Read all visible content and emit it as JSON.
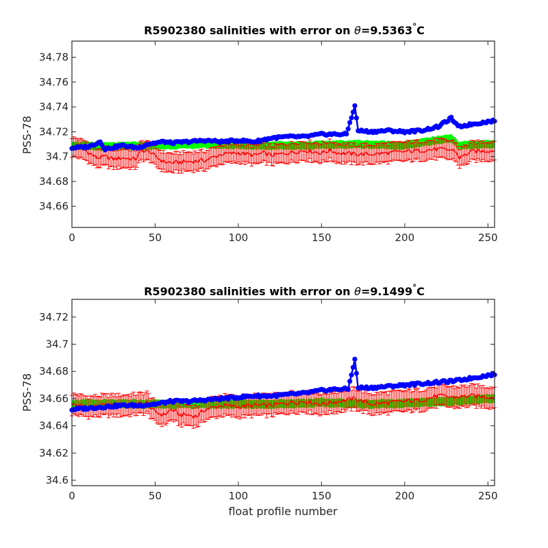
{
  "figure": {
    "xlabel": "float profile number"
  },
  "chart_data": [
    {
      "type": "line",
      "title_prefix": "R5902380 salinities with error on ",
      "theta_symbol": "θ",
      "theta_value": "=9.5363",
      "title_suffix": "C",
      "degree_mark": "°",
      "xlabel": "",
      "ylabel": "PSS-78",
      "xlim": [
        0,
        254
      ],
      "ylim": [
        34.643,
        34.793
      ],
      "x_ticks": [
        0,
        50,
        100,
        150,
        200,
        250
      ],
      "x_tick_labels": [
        "0",
        "50",
        "100",
        "150",
        "200",
        "250"
      ],
      "y_ticks": [
        34.66,
        34.68,
        34.7,
        34.72,
        34.74,
        34.76,
        34.78
      ],
      "y_tick_labels": [
        "34.66",
        "34.68",
        "34.7",
        "34.72",
        "34.74",
        "34.76",
        "34.78"
      ],
      "colors": {
        "float": "#0000ff",
        "mapped": "#ff0000",
        "band": "#00ff00",
        "axis": "#262626"
      },
      "series": [
        {
          "kind": "float-salinity",
          "points": [
            [
              0,
              34.707
            ],
            [
              10,
              34.708
            ],
            [
              17,
              34.712
            ],
            [
              20,
              34.706
            ],
            [
              30,
              34.709
            ],
            [
              40,
              34.707
            ],
            [
              45,
              34.71
            ],
            [
              55,
              34.712
            ],
            [
              60,
              34.711
            ],
            [
              70,
              34.712
            ],
            [
              80,
              34.713
            ],
            [
              90,
              34.712
            ],
            [
              100,
              34.713
            ],
            [
              110,
              34.712
            ],
            [
              120,
              34.715
            ],
            [
              130,
              34.716
            ],
            [
              140,
              34.716
            ],
            [
              150,
              34.718
            ],
            [
              160,
              34.718
            ],
            [
              165,
              34.718
            ],
            [
              170,
              34.741
            ],
            [
              172,
              34.721
            ],
            [
              180,
              34.72
            ],
            [
              190,
              34.721
            ],
            [
              200,
              34.72
            ],
            [
              210,
              34.721
            ],
            [
              220,
              34.724
            ],
            [
              228,
              34.731
            ],
            [
              232,
              34.724
            ],
            [
              240,
              34.726
            ],
            [
              254,
              34.729
            ]
          ]
        },
        {
          "kind": "mapped-salinity",
          "points": [
            [
              0,
              34.708
            ],
            [
              8,
              34.705
            ],
            [
              15,
              34.699
            ],
            [
              20,
              34.7
            ],
            [
              25,
              34.698
            ],
            [
              30,
              34.699
            ],
            [
              38,
              34.698
            ],
            [
              42,
              34.705
            ],
            [
              47,
              34.704
            ],
            [
              50,
              34.7
            ],
            [
              55,
              34.696
            ],
            [
              60,
              34.695
            ],
            [
              70,
              34.696
            ],
            [
              80,
              34.697
            ],
            [
              90,
              34.702
            ],
            [
              100,
              34.703
            ],
            [
              110,
              34.701
            ],
            [
              115,
              34.703
            ],
            [
              120,
              34.701
            ],
            [
              130,
              34.703
            ],
            [
              140,
              34.705
            ],
            [
              150,
              34.703
            ],
            [
              155,
              34.705
            ],
            [
              160,
              34.703
            ],
            [
              170,
              34.702
            ],
            [
              180,
              34.702
            ],
            [
              190,
              34.703
            ],
            [
              200,
              34.704
            ],
            [
              210,
              34.705
            ],
            [
              220,
              34.706
            ],
            [
              230,
              34.705
            ],
            [
              233,
              34.699
            ],
            [
              240,
              34.704
            ],
            [
              254,
              34.705
            ]
          ],
          "error": 0.0075
        },
        {
          "kind": "mapped-band",
          "points": [
            [
              0,
              34.709
            ],
            [
              20,
              34.708
            ],
            [
              50,
              34.709
            ],
            [
              80,
              34.71
            ],
            [
              110,
              34.709
            ],
            [
              140,
              34.709
            ],
            [
              170,
              34.71
            ],
            [
              200,
              34.709
            ],
            [
              228,
              34.715
            ],
            [
              232,
              34.709
            ],
            [
              254,
              34.71
            ]
          ],
          "halfwidth": 0.003
        }
      ]
    },
    {
      "type": "line",
      "title_prefix": "R5902380 salinities with error on ",
      "theta_symbol": "θ",
      "theta_value": "=9.1499",
      "title_suffix": "C",
      "degree_mark": "°",
      "xlabel": "float profile number",
      "ylabel": "PSS-78",
      "xlim": [
        0,
        254
      ],
      "ylim": [
        34.596,
        34.733
      ],
      "x_ticks": [
        0,
        50,
        100,
        150,
        200,
        250
      ],
      "x_tick_labels": [
        "0",
        "50",
        "100",
        "150",
        "200",
        "250"
      ],
      "y_ticks": [
        34.6,
        34.62,
        34.64,
        34.66,
        34.68,
        34.7,
        34.72
      ],
      "y_tick_labels": [
        "34.6",
        "34.62",
        "34.64",
        "34.66",
        "34.68",
        "34.7",
        "34.72"
      ],
      "colors": {
        "float": "#0000ff",
        "mapped": "#ff0000",
        "band": "#00ff00",
        "axis": "#262626"
      },
      "series": [
        {
          "kind": "float-salinity",
          "points": [
            [
              0,
              34.652
            ],
            [
              10,
              34.653
            ],
            [
              20,
              34.654
            ],
            [
              30,
              34.655
            ],
            [
              40,
              34.655
            ],
            [
              50,
              34.656
            ],
            [
              60,
              34.658
            ],
            [
              70,
              34.658
            ],
            [
              80,
              34.659
            ],
            [
              90,
              34.66
            ],
            [
              100,
              34.661
            ],
            [
              110,
              34.662
            ],
            [
              120,
              34.662
            ],
            [
              130,
              34.663
            ],
            [
              140,
              34.664
            ],
            [
              150,
              34.666
            ],
            [
              160,
              34.667
            ],
            [
              166,
              34.667
            ],
            [
              170,
              34.689
            ],
            [
              172,
              34.668
            ],
            [
              180,
              34.668
            ],
            [
              190,
              34.669
            ],
            [
              200,
              34.67
            ],
            [
              210,
              34.671
            ],
            [
              220,
              34.672
            ],
            [
              230,
              34.673
            ],
            [
              240,
              34.675
            ],
            [
              254,
              34.678
            ]
          ]
        },
        {
          "kind": "mapped-salinity",
          "points": [
            [
              0,
              34.656
            ],
            [
              10,
              34.654
            ],
            [
              20,
              34.655
            ],
            [
              30,
              34.655
            ],
            [
              40,
              34.656
            ],
            [
              45,
              34.657
            ],
            [
              50,
              34.65
            ],
            [
              55,
              34.648
            ],
            [
              60,
              34.652
            ],
            [
              65,
              34.648
            ],
            [
              70,
              34.648
            ],
            [
              75,
              34.647
            ],
            [
              80,
              34.652
            ],
            [
              90,
              34.655
            ],
            [
              100,
              34.654
            ],
            [
              110,
              34.655
            ],
            [
              120,
              34.655
            ],
            [
              130,
              34.657
            ],
            [
              140,
              34.658
            ],
            [
              150,
              34.656
            ],
            [
              160,
              34.658
            ],
            [
              170,
              34.66
            ],
            [
              180,
              34.656
            ],
            [
              190,
              34.657
            ],
            [
              200,
              34.658
            ],
            [
              210,
              34.659
            ],
            [
              220,
              34.662
            ],
            [
              230,
              34.661
            ],
            [
              240,
              34.662
            ],
            [
              254,
              34.661
            ]
          ],
          "error": 0.0075
        },
        {
          "kind": "mapped-band",
          "points": [
            [
              0,
              34.656
            ],
            [
              30,
              34.656
            ],
            [
              60,
              34.656
            ],
            [
              90,
              34.656
            ],
            [
              120,
              34.656
            ],
            [
              150,
              34.657
            ],
            [
              180,
              34.656
            ],
            [
              210,
              34.657
            ],
            [
              240,
              34.659
            ],
            [
              254,
              34.66
            ]
          ],
          "halfwidth": 0.003
        }
      ]
    }
  ]
}
